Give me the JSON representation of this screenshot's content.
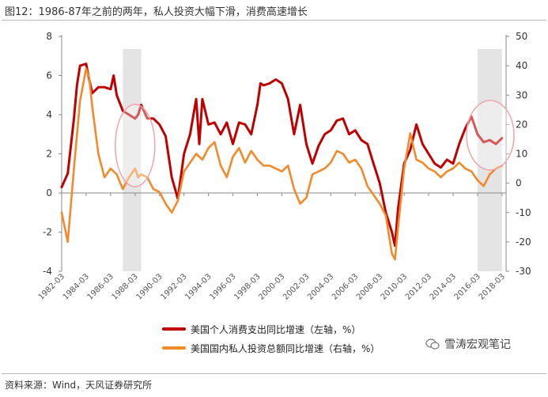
{
  "title": "图12：1986-87年之前的两年，私人投资大幅下滑，消费高速增长",
  "source": "资料来源：Wind，天风证券研究所",
  "watermark": "雪涛宏观笔记",
  "colors": {
    "consumption": "#c00000",
    "investment": "#f28a2c",
    "shade": "#e4e4e4",
    "circle": "#f2a3a8"
  },
  "chart_data": {
    "type": "line",
    "x_tick_labels": [
      "1982-03",
      "1984-03",
      "1986-03",
      "1988-03",
      "1990-03",
      "1992-03",
      "1994-03",
      "1996-03",
      "1998-03",
      "2000-03",
      "2002-03",
      "2004-03",
      "2006-03",
      "2008-03",
      "2010-03",
      "2012-03",
      "2014-03",
      "2016-03",
      "2018-03"
    ],
    "y_left": {
      "min": -4,
      "max": 8,
      "ticks": [
        -4,
        -2,
        0,
        2,
        4,
        6,
        8
      ]
    },
    "y_right": {
      "min": -30,
      "max": 50,
      "ticks": [
        -30,
        -20,
        -10,
        0,
        10,
        20,
        30,
        40,
        50
      ]
    },
    "shaded_periods": [
      [
        "1987-03",
        "1988-09"
      ],
      [
        "2016-03",
        "2018-03"
      ]
    ],
    "highlight_circles": [
      "1987-1989",
      "2016-2018"
    ],
    "series": [
      {
        "name": "美国个人消费支出同比增速（左轴，%）",
        "axis": "left",
        "points": [
          [
            "1982-03",
            0.3
          ],
          [
            "1982-09",
            1.0
          ],
          [
            "1983-03",
            3.8
          ],
          [
            "1983-06",
            5.5
          ],
          [
            "1983-09",
            6.5
          ],
          [
            "1984-03",
            6.6
          ],
          [
            "1984-06",
            5.8
          ],
          [
            "1984-09",
            5.1
          ],
          [
            "1985-03",
            5.4
          ],
          [
            "1985-09",
            5.4
          ],
          [
            "1986-03",
            5.3
          ],
          [
            "1986-06",
            6.0
          ],
          [
            "1986-09",
            5.0
          ],
          [
            "1987-03",
            4.2
          ],
          [
            "1987-09",
            4.0
          ],
          [
            "1988-03",
            3.8
          ],
          [
            "1988-06",
            4.0
          ],
          [
            "1988-09",
            4.5
          ],
          [
            "1989-03",
            3.8
          ],
          [
            "1989-09",
            3.8
          ],
          [
            "1990-03",
            3.5
          ],
          [
            "1990-09",
            2.9
          ],
          [
            "1991-03",
            0.8
          ],
          [
            "1991-09",
            -0.3
          ],
          [
            "1992-03",
            2.0
          ],
          [
            "1992-09",
            3.0
          ],
          [
            "1993-03",
            4.8
          ],
          [
            "1993-06",
            2.5
          ],
          [
            "1993-09",
            4.8
          ],
          [
            "1994-03",
            3.5
          ],
          [
            "1994-09",
            3.6
          ],
          [
            "1995-03",
            3.0
          ],
          [
            "1995-09",
            3.6
          ],
          [
            "1996-03",
            2.5
          ],
          [
            "1996-09",
            3.6
          ],
          [
            "1997-03",
            3.5
          ],
          [
            "1997-09",
            3.0
          ],
          [
            "1998-03",
            4.5
          ],
          [
            "1998-06",
            5.6
          ],
          [
            "1998-09",
            5.5
          ],
          [
            "1999-03",
            5.6
          ],
          [
            "1999-09",
            5.8
          ],
          [
            "2000-03",
            5.6
          ],
          [
            "2000-09",
            4.8
          ],
          [
            "2001-03",
            3.0
          ],
          [
            "2001-09",
            4.5
          ],
          [
            "2002-03",
            2.5
          ],
          [
            "2002-09",
            1.5
          ],
          [
            "2003-03",
            2.4
          ],
          [
            "2003-09",
            3.0
          ],
          [
            "2004-03",
            3.2
          ],
          [
            "2004-09",
            3.7
          ],
          [
            "2005-03",
            3.8
          ],
          [
            "2005-09",
            3.0
          ],
          [
            "2006-03",
            3.2
          ],
          [
            "2006-09",
            2.7
          ],
          [
            "2007-03",
            2.5
          ],
          [
            "2007-09",
            1.5
          ],
          [
            "2008-03",
            0.5
          ],
          [
            "2008-09",
            -1.0
          ],
          [
            "2009-03",
            -2.0
          ],
          [
            "2009-06",
            -2.7
          ],
          [
            "2009-09",
            -0.8
          ],
          [
            "2010-03",
            1.5
          ],
          [
            "2010-09",
            2.2
          ],
          [
            "2011-03",
            3.5
          ],
          [
            "2011-09",
            2.5
          ],
          [
            "2012-03",
            2.0
          ],
          [
            "2012-09",
            1.5
          ],
          [
            "2013-03",
            1.3
          ],
          [
            "2013-09",
            1.7
          ],
          [
            "2014-03",
            1.5
          ],
          [
            "2014-09",
            2.5
          ],
          [
            "2015-03",
            3.3
          ],
          [
            "2015-09",
            3.9
          ],
          [
            "2016-03",
            3.0
          ],
          [
            "2016-09",
            2.6
          ],
          [
            "2017-03",
            2.7
          ],
          [
            "2017-09",
            2.5
          ],
          [
            "2018-03",
            2.8
          ]
        ]
      },
      {
        "name": "美国国内私人投资总额同比增速（右轴，%）",
        "axis": "right",
        "points": [
          [
            "1982-03",
            -10
          ],
          [
            "1982-09",
            -20
          ],
          [
            "1983-03",
            5
          ],
          [
            "1983-09",
            28
          ],
          [
            "1984-03",
            39
          ],
          [
            "1984-06",
            36
          ],
          [
            "1984-09",
            26
          ],
          [
            "1985-03",
            10
          ],
          [
            "1985-09",
            2
          ],
          [
            "1986-03",
            5
          ],
          [
            "1986-09",
            3
          ],
          [
            "1987-03",
            -2
          ],
          [
            "1987-09",
            2
          ],
          [
            "1988-03",
            5
          ],
          [
            "1988-06",
            2
          ],
          [
            "1988-09",
            3
          ],
          [
            "1989-03",
            2
          ],
          [
            "1989-09",
            -2
          ],
          [
            "1990-03",
            -3
          ],
          [
            "1990-09",
            -7
          ],
          [
            "1991-03",
            -10
          ],
          [
            "1991-09",
            -6
          ],
          [
            "1992-03",
            4
          ],
          [
            "1992-09",
            7
          ],
          [
            "1993-03",
            10
          ],
          [
            "1993-09",
            8
          ],
          [
            "1994-03",
            12
          ],
          [
            "1994-09",
            14
          ],
          [
            "1995-03",
            6
          ],
          [
            "1995-09",
            2
          ],
          [
            "1996-03",
            9
          ],
          [
            "1996-09",
            12
          ],
          [
            "1997-03",
            7
          ],
          [
            "1997-09",
            11
          ],
          [
            "1998-03",
            8
          ],
          [
            "1998-09",
            6
          ],
          [
            "1999-03",
            6
          ],
          [
            "1999-09",
            5
          ],
          [
            "2000-03",
            4
          ],
          [
            "2000-09",
            6
          ],
          [
            "2001-03",
            -2
          ],
          [
            "2001-09",
            -7
          ],
          [
            "2002-03",
            -5
          ],
          [
            "2002-09",
            3
          ],
          [
            "2003-03",
            4
          ],
          [
            "2003-09",
            5
          ],
          [
            "2004-03",
            7
          ],
          [
            "2004-09",
            11
          ],
          [
            "2005-03",
            10
          ],
          [
            "2005-09",
            7
          ],
          [
            "2006-03",
            8
          ],
          [
            "2006-09",
            5
          ],
          [
            "2007-03",
            -1
          ],
          [
            "2007-09",
            -4
          ],
          [
            "2008-03",
            -7
          ],
          [
            "2008-09",
            -11
          ],
          [
            "2009-03",
            -24
          ],
          [
            "2009-06",
            -26
          ],
          [
            "2009-09",
            -15
          ],
          [
            "2010-03",
            5
          ],
          [
            "2010-09",
            17
          ],
          [
            "2011-03",
            8
          ],
          [
            "2011-09",
            7
          ],
          [
            "2012-03",
            5
          ],
          [
            "2012-09",
            4
          ],
          [
            "2013-03",
            2
          ],
          [
            "2013-09",
            4
          ],
          [
            "2014-03",
            5
          ],
          [
            "2014-09",
            7
          ],
          [
            "2015-03",
            5
          ],
          [
            "2015-09",
            4
          ],
          [
            "2016-03",
            1
          ],
          [
            "2016-09",
            -1
          ],
          [
            "2017-03",
            3
          ],
          [
            "2017-09",
            5
          ],
          [
            "2018-03",
            6
          ]
        ]
      }
    ]
  }
}
